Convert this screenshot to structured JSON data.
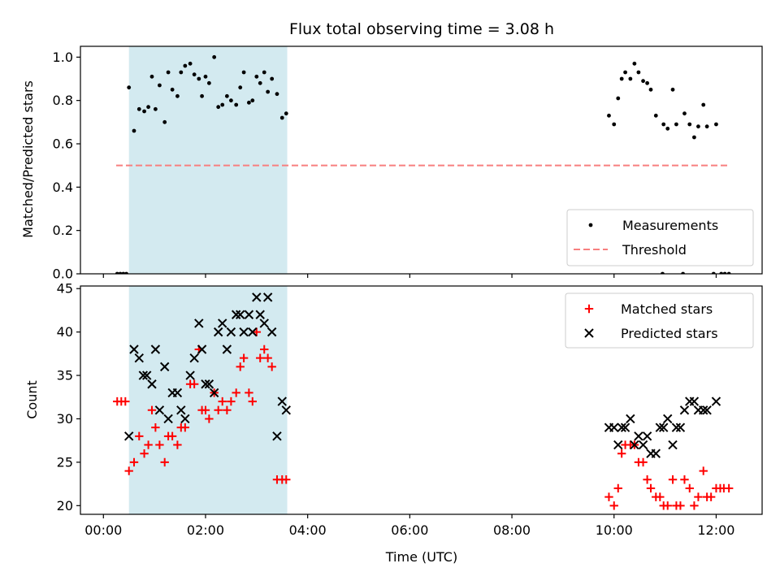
{
  "chart_data": [
    {
      "type": "scatter",
      "title": "Flux total observing time = 3.08 h",
      "ylabel": "Matched/Predicted stars",
      "xlabel": "",
      "x_unit": "hours UTC",
      "xlim": [
        -0.45,
        12.9
      ],
      "ylim": [
        0,
        1.05
      ],
      "yticks": [
        {
          "value": 0.0,
          "label": "0.0"
        },
        {
          "value": 0.2,
          "label": "0.2"
        },
        {
          "value": 0.4,
          "label": "0.4"
        },
        {
          "value": 0.6,
          "label": "0.6"
        },
        {
          "value": 0.8,
          "label": "0.8"
        },
        {
          "value": 1.0,
          "label": "1.0"
        }
      ],
      "highlight_span": {
        "x0": 0.5,
        "x1": 3.6,
        "color": "#d3eaf0"
      },
      "threshold": {
        "name": "Threshold",
        "value": 0.5,
        "x0": 0.25,
        "x1": 12.25,
        "color": "#f87f7f"
      },
      "legend": {
        "placement": "lower-right",
        "entries": [
          "Measurements",
          "Threshold"
        ]
      },
      "series": [
        {
          "name": "Measurements",
          "marker": "dot",
          "color": "#000000",
          "points": [
            [
              0.27,
              0.0
            ],
            [
              0.33,
              0.0
            ],
            [
              0.39,
              0.0
            ],
            [
              0.45,
              0.0
            ],
            [
              0.5,
              0.86
            ],
            [
              0.6,
              0.66
            ],
            [
              0.7,
              0.76
            ],
            [
              0.8,
              0.75
            ],
            [
              0.88,
              0.77
            ],
            [
              0.95,
              0.91
            ],
            [
              1.02,
              0.76
            ],
            [
              1.1,
              0.87
            ],
            [
              1.2,
              0.7
            ],
            [
              1.27,
              0.93
            ],
            [
              1.35,
              0.85
            ],
            [
              1.45,
              0.82
            ],
            [
              1.52,
              0.93
            ],
            [
              1.6,
              0.96
            ],
            [
              1.7,
              0.97
            ],
            [
              1.78,
              0.92
            ],
            [
              1.87,
              0.9
            ],
            [
              1.93,
              0.82
            ],
            [
              2.0,
              0.91
            ],
            [
              2.07,
              0.88
            ],
            [
              2.17,
              1.0
            ],
            [
              2.25,
              0.77
            ],
            [
              2.33,
              0.78
            ],
            [
              2.42,
              0.82
            ],
            [
              2.5,
              0.8
            ],
            [
              2.6,
              0.78
            ],
            [
              2.68,
              0.86
            ],
            [
              2.75,
              0.93
            ],
            [
              2.85,
              0.79
            ],
            [
              2.92,
              0.8
            ],
            [
              3.0,
              0.91
            ],
            [
              3.07,
              0.88
            ],
            [
              3.15,
              0.93
            ],
            [
              3.22,
              0.84
            ],
            [
              3.3,
              0.9
            ],
            [
              3.4,
              0.83
            ],
            [
              3.5,
              0.72
            ],
            [
              3.58,
              0.74
            ],
            [
              9.9,
              0.73
            ],
            [
              10.0,
              0.69
            ],
            [
              10.08,
              0.81
            ],
            [
              10.15,
              0.9
            ],
            [
              10.22,
              0.93
            ],
            [
              10.32,
              0.9
            ],
            [
              10.4,
              0.97
            ],
            [
              10.48,
              0.93
            ],
            [
              10.57,
              0.89
            ],
            [
              10.65,
              0.88
            ],
            [
              10.72,
              0.85
            ],
            [
              10.82,
              0.73
            ],
            [
              10.97,
              0.69
            ],
            [
              11.05,
              0.67
            ],
            [
              11.15,
              0.85
            ],
            [
              11.22,
              0.69
            ],
            [
              11.38,
              0.74
            ],
            [
              11.48,
              0.69
            ],
            [
              11.57,
              0.63
            ],
            [
              11.65,
              0.68
            ],
            [
              11.75,
              0.78
            ],
            [
              11.82,
              0.68
            ],
            [
              12.0,
              0.69
            ],
            [
              10.95,
              0.0
            ],
            [
              11.35,
              0.0
            ],
            [
              11.95,
              0.0
            ],
            [
              12.1,
              0.0
            ],
            [
              12.17,
              0.0
            ],
            [
              12.25,
              0.0
            ]
          ]
        }
      ]
    },
    {
      "type": "scatter",
      "title": "",
      "ylabel": "Count",
      "xlabel": "Time (UTC)",
      "x_unit": "hours UTC",
      "xlim": [
        -0.45,
        12.9
      ],
      "ylim": [
        19,
        45.3
      ],
      "xticks": [
        {
          "value": 0,
          "label": "00:00"
        },
        {
          "value": 2,
          "label": "02:00"
        },
        {
          "value": 4,
          "label": "04:00"
        },
        {
          "value": 6,
          "label": "06:00"
        },
        {
          "value": 8,
          "label": "08:00"
        },
        {
          "value": 10,
          "label": "10:00"
        },
        {
          "value": 12,
          "label": "12:00"
        }
      ],
      "yticks": [
        {
          "value": 20,
          "label": "20"
        },
        {
          "value": 25,
          "label": "25"
        },
        {
          "value": 30,
          "label": "30"
        },
        {
          "value": 35,
          "label": "35"
        },
        {
          "value": 40,
          "label": "40"
        },
        {
          "value": 45,
          "label": "45"
        }
      ],
      "highlight_span": {
        "x0": 0.5,
        "x1": 3.6,
        "color": "#d3eaf0"
      },
      "legend": {
        "placement": "upper-right",
        "entries": [
          "Matched stars",
          "Predicted stars"
        ]
      },
      "series": [
        {
          "name": "Matched stars",
          "marker": "plus",
          "color": "#ff0000",
          "points": [
            [
              0.27,
              32
            ],
            [
              0.35,
              32
            ],
            [
              0.43,
              32
            ],
            [
              0.5,
              24
            ],
            [
              0.6,
              25
            ],
            [
              0.7,
              28
            ],
            [
              0.8,
              26
            ],
            [
              0.88,
              27
            ],
            [
              0.95,
              31
            ],
            [
              1.02,
              29
            ],
            [
              1.1,
              27
            ],
            [
              1.2,
              25
            ],
            [
              1.27,
              28
            ],
            [
              1.35,
              28
            ],
            [
              1.45,
              27
            ],
            [
              1.52,
              29
            ],
            [
              1.6,
              29
            ],
            [
              1.7,
              34
            ],
            [
              1.78,
              34
            ],
            [
              1.87,
              38
            ],
            [
              1.93,
              31
            ],
            [
              2.0,
              31
            ],
            [
              2.07,
              30
            ],
            [
              2.17,
              33
            ],
            [
              2.25,
              31
            ],
            [
              2.33,
              32
            ],
            [
              2.42,
              31
            ],
            [
              2.5,
              32
            ],
            [
              2.6,
              33
            ],
            [
              2.68,
              36
            ],
            [
              2.75,
              37
            ],
            [
              2.85,
              33
            ],
            [
              2.92,
              32
            ],
            [
              3.0,
              40
            ],
            [
              3.07,
              37
            ],
            [
              3.15,
              38
            ],
            [
              3.22,
              37
            ],
            [
              3.3,
              36
            ],
            [
              3.4,
              23
            ],
            [
              3.5,
              23
            ],
            [
              3.58,
              23
            ],
            [
              9.9,
              21
            ],
            [
              10.0,
              20
            ],
            [
              10.08,
              22
            ],
            [
              10.15,
              26
            ],
            [
              10.22,
              27
            ],
            [
              10.32,
              27
            ],
            [
              10.4,
              27
            ],
            [
              10.48,
              25
            ],
            [
              10.57,
              25
            ],
            [
              10.65,
              23
            ],
            [
              10.72,
              22
            ],
            [
              10.82,
              21
            ],
            [
              10.9,
              21
            ],
            [
              10.97,
              20
            ],
            [
              11.05,
              20
            ],
            [
              11.15,
              23
            ],
            [
              11.22,
              20
            ],
            [
              11.3,
              20
            ],
            [
              11.38,
              23
            ],
            [
              11.48,
              22
            ],
            [
              11.57,
              20
            ],
            [
              11.65,
              21
            ],
            [
              11.75,
              24
            ],
            [
              11.82,
              21
            ],
            [
              11.9,
              21
            ],
            [
              12.0,
              22
            ],
            [
              12.08,
              22
            ],
            [
              12.15,
              22
            ],
            [
              12.25,
              22
            ]
          ]
        },
        {
          "name": "Predicted stars",
          "marker": "cross",
          "color": "#000000",
          "points": [
            [
              0.5,
              28
            ],
            [
              0.6,
              38
            ],
            [
              0.7,
              37
            ],
            [
              0.78,
              35
            ],
            [
              0.85,
              35
            ],
            [
              0.95,
              34
            ],
            [
              1.02,
              38
            ],
            [
              1.1,
              31
            ],
            [
              1.2,
              36
            ],
            [
              1.27,
              30
            ],
            [
              1.35,
              33
            ],
            [
              1.45,
              33
            ],
            [
              1.52,
              31
            ],
            [
              1.6,
              30
            ],
            [
              1.7,
              35
            ],
            [
              1.78,
              37
            ],
            [
              1.87,
              41
            ],
            [
              1.93,
              38
            ],
            [
              2.0,
              34
            ],
            [
              2.07,
              34
            ],
            [
              2.17,
              33
            ],
            [
              2.25,
              40
            ],
            [
              2.33,
              41
            ],
            [
              2.42,
              38
            ],
            [
              2.5,
              40
            ],
            [
              2.6,
              42
            ],
            [
              2.68,
              42
            ],
            [
              2.75,
              40
            ],
            [
              2.85,
              42
            ],
            [
              2.92,
              40
            ],
            [
              3.0,
              44
            ],
            [
              3.07,
              42
            ],
            [
              3.15,
              41
            ],
            [
              3.22,
              44
            ],
            [
              3.3,
              40
            ],
            [
              3.4,
              28
            ],
            [
              3.5,
              32
            ],
            [
              3.58,
              31
            ],
            [
              9.9,
              29
            ],
            [
              10.0,
              29
            ],
            [
              10.08,
              27
            ],
            [
              10.15,
              29
            ],
            [
              10.22,
              29
            ],
            [
              10.32,
              30
            ],
            [
              10.4,
              27
            ],
            [
              10.48,
              28
            ],
            [
              10.57,
              27
            ],
            [
              10.65,
              28
            ],
            [
              10.72,
              26
            ],
            [
              10.82,
              26
            ],
            [
              10.9,
              29
            ],
            [
              10.97,
              29
            ],
            [
              11.05,
              30
            ],
            [
              11.15,
              27
            ],
            [
              11.22,
              29
            ],
            [
              11.3,
              29
            ],
            [
              11.38,
              31
            ],
            [
              11.48,
              32
            ],
            [
              11.57,
              32
            ],
            [
              11.65,
              31
            ],
            [
              11.75,
              31
            ],
            [
              11.82,
              31
            ],
            [
              12.0,
              32
            ]
          ]
        }
      ]
    }
  ]
}
